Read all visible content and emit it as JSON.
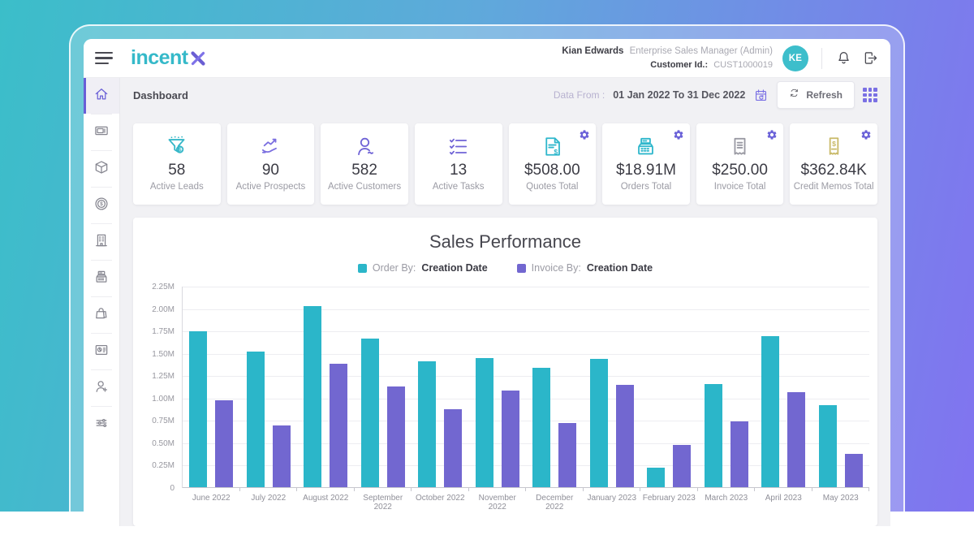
{
  "header": {
    "logo": {
      "part1": "incent",
      "x_icon": "logo-x-icon"
    },
    "user": {
      "name": "Kian Edwards",
      "role": "Enterprise Sales Manager (Admin)",
      "customer_id_label": "Customer Id.:",
      "customer_id": "CUST1000019",
      "avatar_initials": "KE"
    },
    "icons": [
      "bell-icon",
      "logout-icon"
    ]
  },
  "toolbar": {
    "title": "Dashboard",
    "date_label": "Data From :",
    "date_range": "01 Jan 2022 To 31 Dec 2022",
    "calendar_icon": "calendar-refresh-icon",
    "refresh_label": "Refresh",
    "apps_icon": "grid-apps-icon"
  },
  "sidebar": {
    "items": [
      {
        "icon": "home-icon",
        "active": true
      },
      {
        "icon": "crm-card-icon",
        "active": false
      },
      {
        "icon": "package-icon",
        "active": false
      },
      {
        "icon": "dollar-coin-icon",
        "active": false
      },
      {
        "icon": "building-icon",
        "active": false
      },
      {
        "icon": "cash-register-icon",
        "active": false
      },
      {
        "icon": "shopping-bag-icon",
        "active": false
      },
      {
        "icon": "report-chart-icon",
        "active": false
      },
      {
        "icon": "user-add-icon",
        "active": false
      },
      {
        "icon": "sliders-icon",
        "active": false
      }
    ]
  },
  "kpi_cards": [
    {
      "icon": "funnel-leads-icon",
      "color": "#35b7c8",
      "value": "58",
      "label": "Active Leads",
      "has_gear": false
    },
    {
      "icon": "hand-chart-icon",
      "color": "#7b6fe0",
      "value": "90",
      "label": "Active Prospects",
      "has_gear": false
    },
    {
      "icon": "person-icon",
      "color": "#6f63d6",
      "value": "582",
      "label": "Active Customers",
      "has_gear": false
    },
    {
      "icon": "checklist-icon",
      "color": "#6f63d6",
      "value": "13",
      "label": "Active Tasks",
      "has_gear": false
    },
    {
      "icon": "quote-document-icon",
      "color": "#2fb7cc",
      "value": "$508.00",
      "label": "Quotes Total",
      "has_gear": true
    },
    {
      "icon": "cash-register-icon",
      "color": "#2fb7cc",
      "value": "$18.91M",
      "label": "Orders Total",
      "has_gear": true
    },
    {
      "icon": "invoice-receipt-icon",
      "color": "#9a9aa3",
      "value": "$250.00",
      "label": "Invoice Total",
      "has_gear": true
    },
    {
      "icon": "credit-memo-icon",
      "color": "#c9ba69",
      "value": "$362.84K",
      "label": "Credit Memos Total",
      "has_gear": true
    }
  ],
  "chart_data": {
    "type": "bar",
    "title": "Sales Performance",
    "categories": [
      "June 2022",
      "July 2022",
      "August 2022",
      "September 2022",
      "October 2022",
      "November 2022",
      "December 2022",
      "January 2023",
      "February 2023",
      "March 2023",
      "April 2023",
      "May 2023"
    ],
    "series": [
      {
        "name": "Order By: Creation Date",
        "color": "#2bb6c9",
        "values": [
          1.75,
          1.52,
          2.03,
          1.67,
          1.42,
          1.45,
          1.34,
          1.44,
          0.23,
          1.16,
          1.7,
          0.93
        ]
      },
      {
        "name": "Invoice By: Creation Date",
        "color": "#7267d0",
        "values": [
          0.98,
          0.7,
          1.39,
          1.13,
          0.88,
          1.09,
          0.73,
          1.15,
          0.48,
          0.74,
          1.07,
          0.38
        ]
      }
    ],
    "legend": [
      {
        "color": "#2bb6c9",
        "prefix": "Order By:",
        "value": "Creation Date"
      },
      {
        "color": "#7267d0",
        "prefix": "Invoice By:",
        "value": "Creation Date"
      }
    ],
    "ylim": [
      0,
      2.25
    ],
    "ytick_step": 0.25,
    "ytick_labels": [
      "0",
      "0.25M",
      "0.50M",
      "0.75M",
      "1.00M",
      "1.25M",
      "1.50M",
      "1.75M",
      "2.00M",
      "2.25M"
    ],
    "grid": true,
    "legend_position": "top",
    "unit": "M"
  },
  "colors": {
    "brand_teal": "#35b9c9",
    "brand_purple": "#6a5ed3",
    "accent_purple": "#7a70e4",
    "avatar_bg": "#3dbecb",
    "bg_gradient_left": "#3bbec9",
    "bg_gradient_right": "#8173f0"
  }
}
